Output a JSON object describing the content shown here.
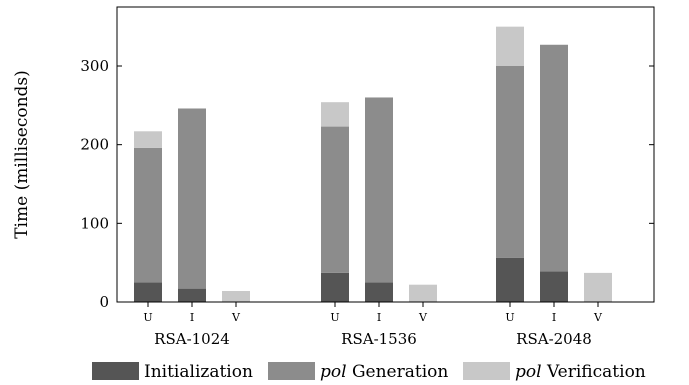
{
  "chart_data": {
    "type": "bar",
    "stacked": true,
    "ylabel": "Time (milliseconds)",
    "ylim": [
      0,
      375
    ],
    "yticks": [
      0,
      100,
      200,
      300
    ],
    "grid": false,
    "legend_position": "bottom",
    "groups": [
      "RSA-1024",
      "RSA-1536",
      "RSA-2048"
    ],
    "subcategories": [
      "U",
      "I",
      "V"
    ],
    "series": [
      {
        "name": "Initialization",
        "name_em": "",
        "color": "#555555",
        "values": [
          [
            25,
            17,
            0
          ],
          [
            37,
            25,
            0
          ],
          [
            56,
            39,
            0
          ]
        ]
      },
      {
        "name": " Generation",
        "name_em": "pol",
        "color": "#8c8c8c",
        "values": [
          [
            171,
            229,
            0
          ],
          [
            186,
            235,
            0
          ],
          [
            244,
            288,
            0
          ]
        ]
      },
      {
        "name": " Verification",
        "name_em": "pol",
        "color": "#c8c8c8",
        "values": [
          [
            21,
            0,
            14
          ],
          [
            31,
            0,
            22
          ],
          [
            50,
            0,
            37
          ]
        ]
      }
    ]
  }
}
